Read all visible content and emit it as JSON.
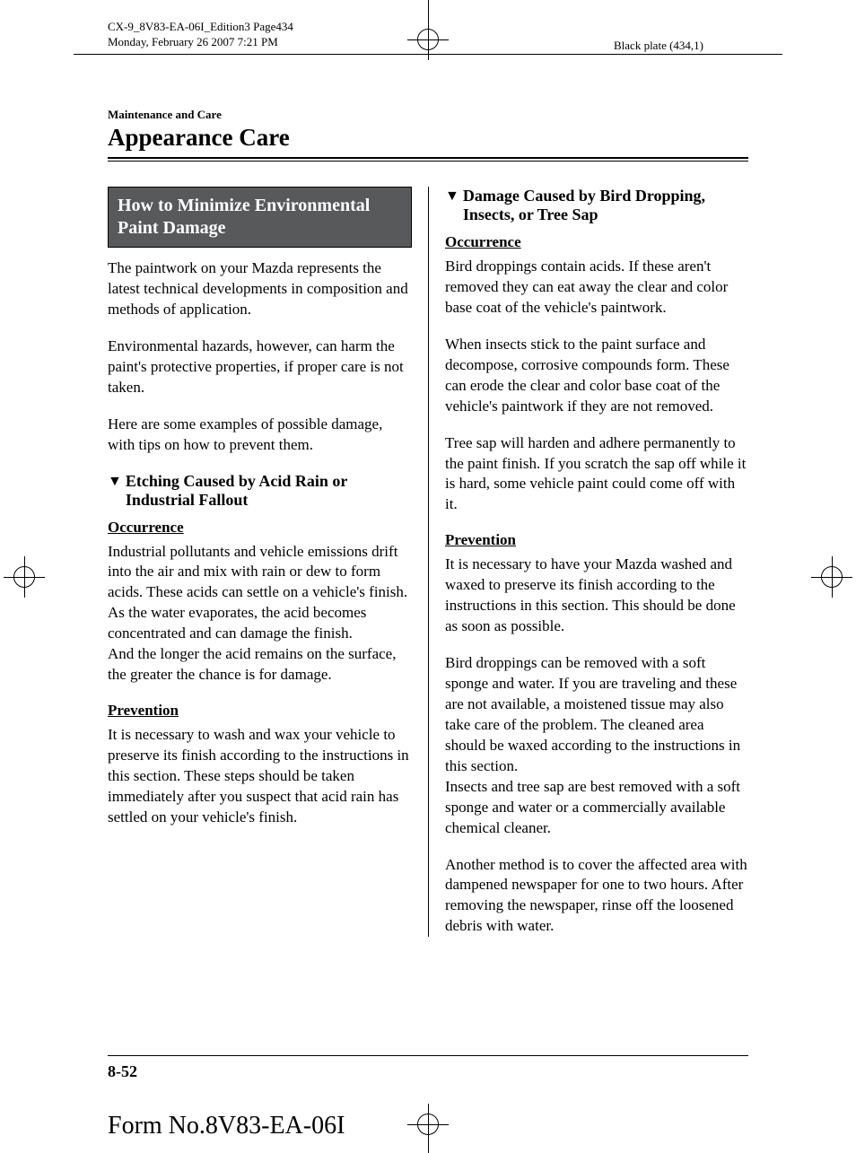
{
  "meta": {
    "line1": "CX-9_8V83-EA-06I_Edition3 Page434",
    "line2": "Monday, February 26 2007 7:21 PM",
    "black_plate": "Black plate (434,1)"
  },
  "header": {
    "breadcrumb": "Maintenance and Care",
    "title": "Appearance Care"
  },
  "left": {
    "section_title": "How to Minimize Environmental Paint Damage",
    "intro1": "The paintwork on your Mazda represents the latest technical developments in composition and methods of application.",
    "intro2": "Environmental hazards, however, can harm the paint's protective properties, if proper care is not taken.",
    "intro3": "Here are some examples of possible damage, with tips on how to prevent them.",
    "sub1_title": "Etching Caused by Acid Rain or Industrial Fallout",
    "sub1_occ_label": "Occurrence",
    "sub1_occ_text": "Industrial pollutants and vehicle emissions drift into the air and mix with rain or dew to form acids. These acids can settle on a vehicle's finish. As the water evaporates, the acid becomes concentrated and can damage the finish.\nAnd the longer the acid remains on the surface, the greater the chance is for damage.",
    "sub1_prev_label": "Prevention",
    "sub1_prev_text": "It is necessary to wash and wax your vehicle to preserve its finish according to the instructions in this section. These steps should be taken immediately after you suspect that acid rain has settled on your vehicle's finish."
  },
  "right": {
    "sub2_title": "Damage Caused by Bird Dropping, Insects, or Tree Sap",
    "sub2_occ_label": "Occurrence",
    "sub2_occ_p1": "Bird droppings contain acids. If these aren't removed they can eat away the clear and color base coat of the vehicle's paintwork.",
    "sub2_occ_p2": "When insects stick to the paint surface and decompose, corrosive compounds form. These can erode the clear and color base coat of the vehicle's paintwork if they are not removed.",
    "sub2_occ_p3": "Tree sap will harden and adhere permanently to the paint finish. If you scratch the sap off while it is hard, some vehicle paint could come off with it.",
    "sub2_prev_label": "Prevention",
    "sub2_prev_p1": "It is necessary to have your Mazda washed and waxed to preserve its finish according to the instructions in this section. This should be done as soon as possible.",
    "sub2_prev_p2": "Bird droppings can be removed with a soft sponge and water. If you are traveling and these are not available, a moistened tissue may also take care of the problem. The cleaned area should be waxed according to the instructions in this section.\nInsects and tree sap are best removed with a soft sponge and water or a commercially available chemical cleaner.",
    "sub2_prev_p3": "Another method is to cover the affected area with dampened newspaper for one to two hours. After removing the newspaper, rinse off the loosened debris with water."
  },
  "footer": {
    "page_num": "8-52",
    "form_no": "Form No.8V83-EA-06I"
  }
}
